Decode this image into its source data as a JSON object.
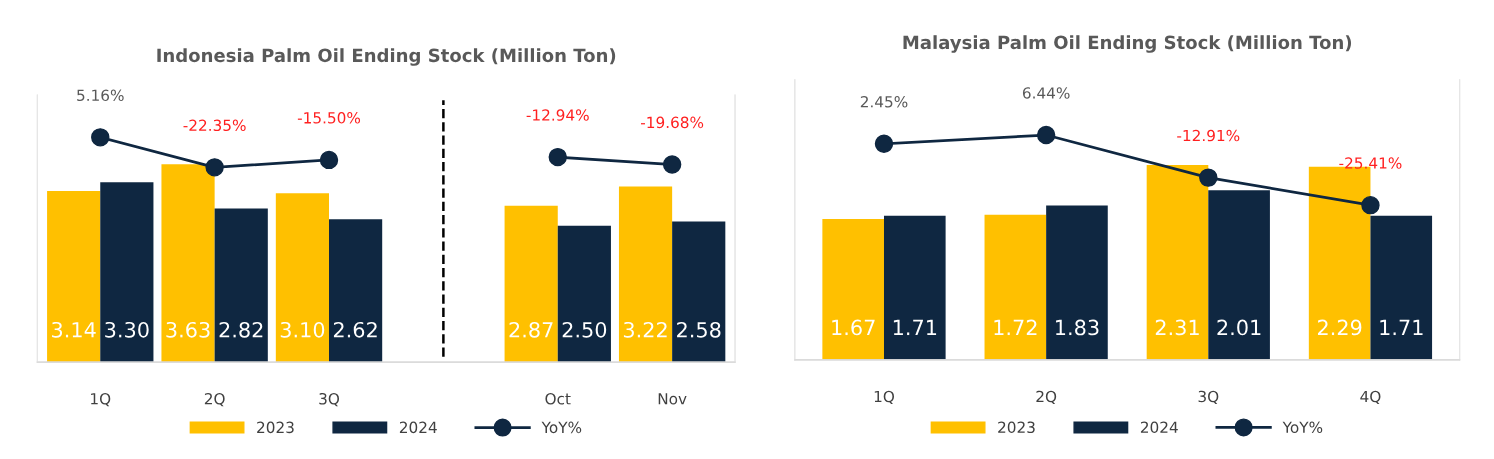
{
  "chart_data": [
    {
      "type": "bar",
      "title": "Indonesia Palm Oil Ending Stock (Million Ton)",
      "categories": [
        "1Q",
        "2Q",
        "3Q",
        null,
        "Oct",
        "Nov"
      ],
      "series": [
        {
          "name": "2023",
          "color": "#ffc000",
          "values": [
            3.14,
            3.63,
            3.1,
            null,
            2.87,
            3.22
          ],
          "value_labels": [
            "3.14",
            "3.63",
            "3.10",
            null,
            "2.87",
            "3.22"
          ]
        },
        {
          "name": "2024",
          "color": "#0f2741",
          "values": [
            3.3,
            2.82,
            2.62,
            null,
            2.5,
            2.58
          ],
          "value_labels": [
            "3.30",
            "2.82",
            "2.62",
            null,
            "2.50",
            "2.58"
          ]
        },
        {
          "name": "YoY%",
          "type": "line",
          "axis": "y2",
          "color": "#0f2741",
          "values": [
            5.16,
            -22.35,
            -15.5,
            null,
            -12.94,
            -19.68
          ],
          "value_labels": [
            "5.16%",
            "-22.35%",
            "-15.50%",
            null,
            "-12.94%",
            "-19.68%"
          ]
        }
      ],
      "ylim": [
        0,
        4.9
      ],
      "y2lim": [
        -201,
        44
      ],
      "tick_labels": "x",
      "legend": "bottom",
      "marker": "circle"
    },
    {
      "type": "bar",
      "title": "Malaysia Palm Oil Ending Stock (Million Ton)",
      "categories": [
        "1Q",
        "2Q",
        "3Q",
        "4Q"
      ],
      "series": [
        {
          "name": "2023",
          "color": "#ffc000",
          "values": [
            1.67,
            1.72,
            2.31,
            2.29
          ],
          "value_labels": [
            "1.67",
            "1.72",
            "2.31",
            "2.29"
          ]
        },
        {
          "name": "2024",
          "color": "#0f2741",
          "values": [
            1.71,
            1.83,
            2.01,
            1.71
          ],
          "value_labels": [
            "1.71",
            "1.83",
            "2.01",
            "1.71"
          ]
        },
        {
          "name": "YoY%",
          "type": "line",
          "axis": "y2",
          "color": "#0f2741",
          "values": [
            2.45,
            6.44,
            -12.91,
            -25.41
          ],
          "value_labels": [
            "2.45%",
            "6.44%",
            "-12.91%",
            "-25.41%"
          ]
        }
      ],
      "ylim": [
        0,
        3.32
      ],
      "y2lim": [
        -95.7,
        31.5
      ],
      "tick_labels": "x",
      "legend": "bottom",
      "marker": "circle"
    }
  ]
}
